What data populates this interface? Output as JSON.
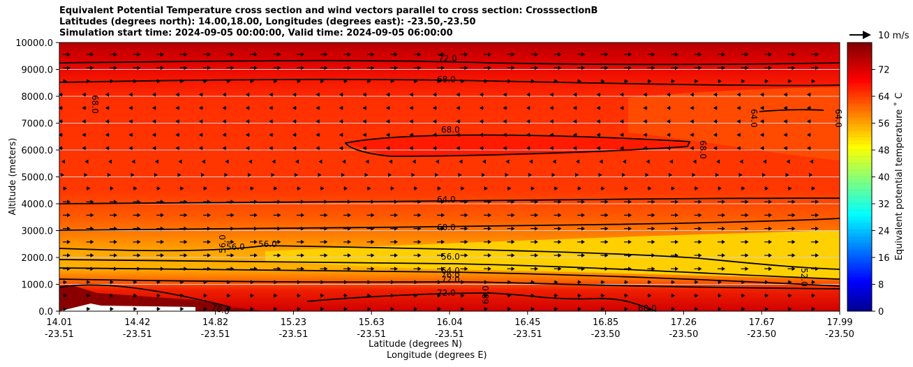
{
  "title_lines": [
    "Equivalent Potential Temperature cross section and wind vectors parallel to cross section: CrosssectionB",
    "Latitudes (degrees north): 14.00,18.00, Longitudes (degrees east): -23.50,-23.50",
    "Simulation start time: 2024-09-05 00:00:00, Valid time: 2024-09-05 06:00:00"
  ],
  "x_label_lat": "Latitude (degrees N)",
  "x_label_lon": "Longitude (degrees E)",
  "y_label": "Altitude (meters)",
  "colorbar_label": "Equivalent potential temperature ˚ C",
  "quiver_key_label": "10 m/s",
  "colors": {
    "hot_top": "#b00000",
    "warm": "#ff3000",
    "mid": "#ffa000",
    "yellow": "#ffd700",
    "contour": "#000000"
  },
  "chart_data": {
    "type": "contourf",
    "title": "Equivalent Potential Temperature cross section and wind vectors parallel to cross section: CrosssectionB",
    "xlabel": "Latitude (degrees N) / Longitude (degrees E)",
    "ylabel": "Altitude (meters)",
    "x_ticks_lat": [
      "14.01",
      "14.42",
      "14.82",
      "15.23",
      "15.63",
      "16.04",
      "16.45",
      "16.85",
      "17.26",
      "17.67",
      "17.99"
    ],
    "x_ticks_lon": [
      "-23.51",
      "-23.51",
      "-23.51",
      "-23.51",
      "-23.51",
      "-23.51",
      "-23.51",
      "-23.50",
      "-23.50",
      "-23.50",
      "-23.50"
    ],
    "y_ticks": [
      "0.0",
      "1000.0",
      "2000.0",
      "3000.0",
      "4000.0",
      "5000.0",
      "6000.0",
      "7000.0",
      "8000.0",
      "9000.0",
      "10000.0"
    ],
    "ylim": [
      0,
      10000
    ],
    "grid": "horizontal",
    "colorbar": {
      "ticks": [
        "0",
        "8",
        "16",
        "24",
        "32",
        "40",
        "48",
        "56",
        "64",
        "72"
      ],
      "range": [
        0,
        80
      ],
      "step": 2
    },
    "contour_labels": [
      "72.0",
      "68.0",
      "68.0",
      "64.0",
      "68.0",
      "68.0",
      "64.0",
      "64.0",
      "60.0",
      "56.0",
      "56.0",
      "56.0",
      "56.0",
      "64.0",
      "72.0",
      "76.0",
      "72.0",
      "68.0",
      "76.0",
      "68.0",
      "52.0"
    ]
  }
}
